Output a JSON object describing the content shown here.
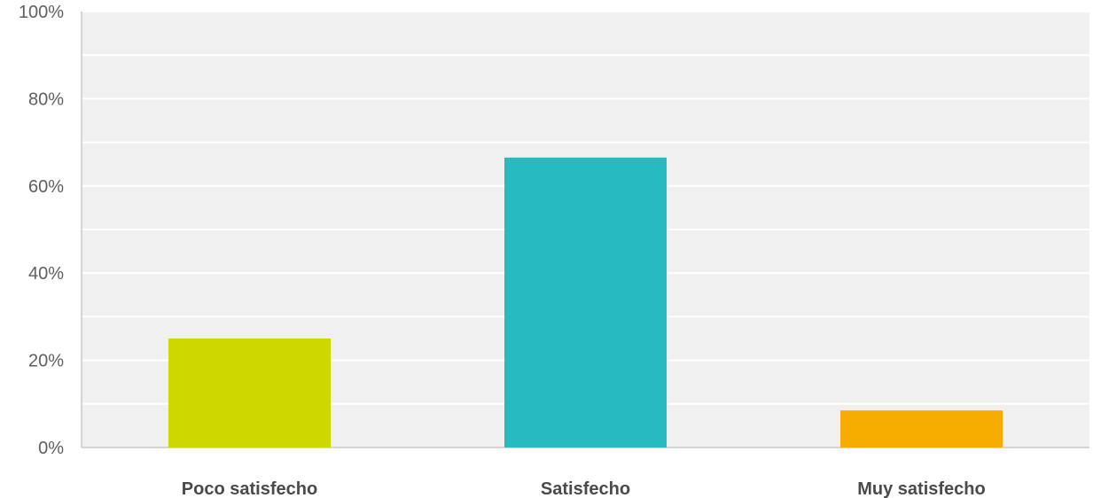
{
  "chart_data": {
    "type": "bar",
    "categories": [
      "Poco satisfecho",
      "Satisfecho",
      "Muy satisfecho"
    ],
    "values": [
      25,
      66.5,
      8.5
    ],
    "colors": [
      "#cdd800",
      "#27bbc0",
      "#f7ad00"
    ],
    "ylim": [
      0,
      100
    ],
    "yticks": [
      0,
      20,
      40,
      60,
      80,
      100
    ],
    "ytick_labels": [
      "0%",
      "20%",
      "40%",
      "60%",
      "80%",
      "100%"
    ],
    "grid": true,
    "plot_background": "#f0f0f0",
    "title": "",
    "xlabel": "",
    "ylabel": ""
  }
}
